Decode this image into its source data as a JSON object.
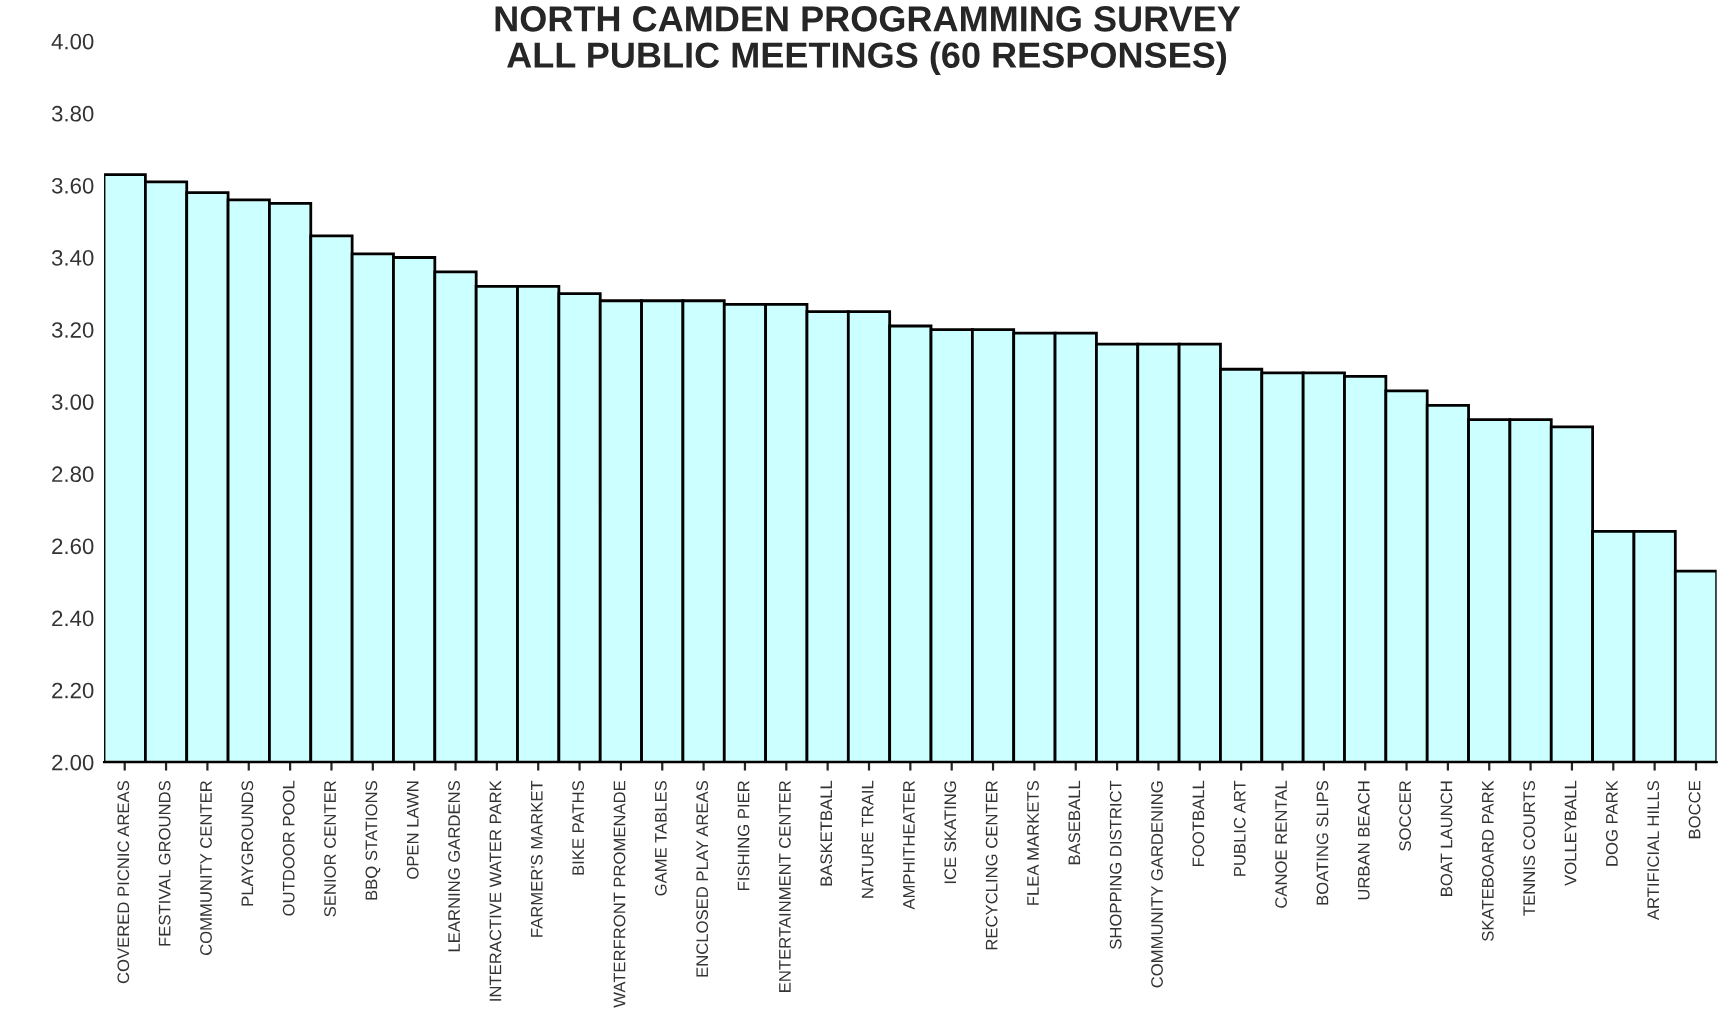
{
  "chart_data": {
    "type": "bar",
    "title": "NORTH CAMDEN PROGRAMMING SURVEY\nALL PUBLIC MEETINGS (60 RESPONSES)",
    "categories": [
      "COVERED PICNIC AREAS",
      "FESTIVAL GROUNDS",
      "COMMUNITY CENTER",
      "PLAYGROUNDS",
      "OUTDOOR POOL",
      "SENIOR CENTER",
      "BBQ STATIONS",
      "OPEN LAWN",
      "LEARNING GARDENS",
      "INTERACTIVE WATER PARK",
      "FARMER'S MARKET",
      "BIKE PATHS",
      "WATERFRONT PROMENADE",
      "GAME TABLES",
      "ENCLOSED PLAY AREAS",
      "FISHING PIER",
      "ENTERTAINMENT CENTER",
      "BASKETBALL",
      "NATURE TRAIL",
      "AMPHITHEATER",
      "ICE SKATING",
      "RECYCLING CENTER",
      "FLEA MARKETS",
      "BASEBALL",
      "SHOPPING DISTRICT",
      "COMMUNITY GARDENING",
      "FOOTBALL",
      "PUBLIC ART",
      "CANOE RENTAL",
      "BOATING SLIPS",
      "URBAN BEACH",
      "SOCCER",
      "BOAT LAUNCH",
      "SKATEBOARD PARK",
      "TENNIS COURTS",
      "VOLLEYBALL",
      "DOG PARK",
      "ARTIFICIAL HILLS",
      "BOCCE"
    ],
    "values": [
      3.63,
      3.61,
      3.58,
      3.56,
      3.55,
      3.46,
      3.41,
      3.4,
      3.36,
      3.32,
      3.32,
      3.3,
      3.28,
      3.28,
      3.28,
      3.27,
      3.27,
      3.25,
      3.25,
      3.21,
      3.2,
      3.2,
      3.19,
      3.19,
      3.16,
      3.16,
      3.16,
      3.09,
      3.08,
      3.08,
      3.07,
      3.03,
      2.99,
      2.95,
      2.95,
      2.93,
      2.64,
      2.64,
      2.53
    ],
    "color": "#ccffff",
    "ylim": [
      2.0,
      4.0
    ],
    "yticks": [
      {
        "value": 2.0,
        "label": "2.00"
      },
      {
        "value": 2.2,
        "label": "2.20"
      },
      {
        "value": 2.4,
        "label": "2.40"
      },
      {
        "value": 2.6,
        "label": "2.60"
      },
      {
        "value": 2.8,
        "label": "2.80"
      },
      {
        "value": 3.0,
        "label": "3.00"
      },
      {
        "value": 3.2,
        "label": "3.20"
      },
      {
        "value": 3.4,
        "label": "3.40"
      },
      {
        "value": 3.6,
        "label": "3.60"
      },
      {
        "value": 3.8,
        "label": "3.80"
      },
      {
        "value": 4.0,
        "label": "4.00"
      }
    ],
    "grid": false
  }
}
